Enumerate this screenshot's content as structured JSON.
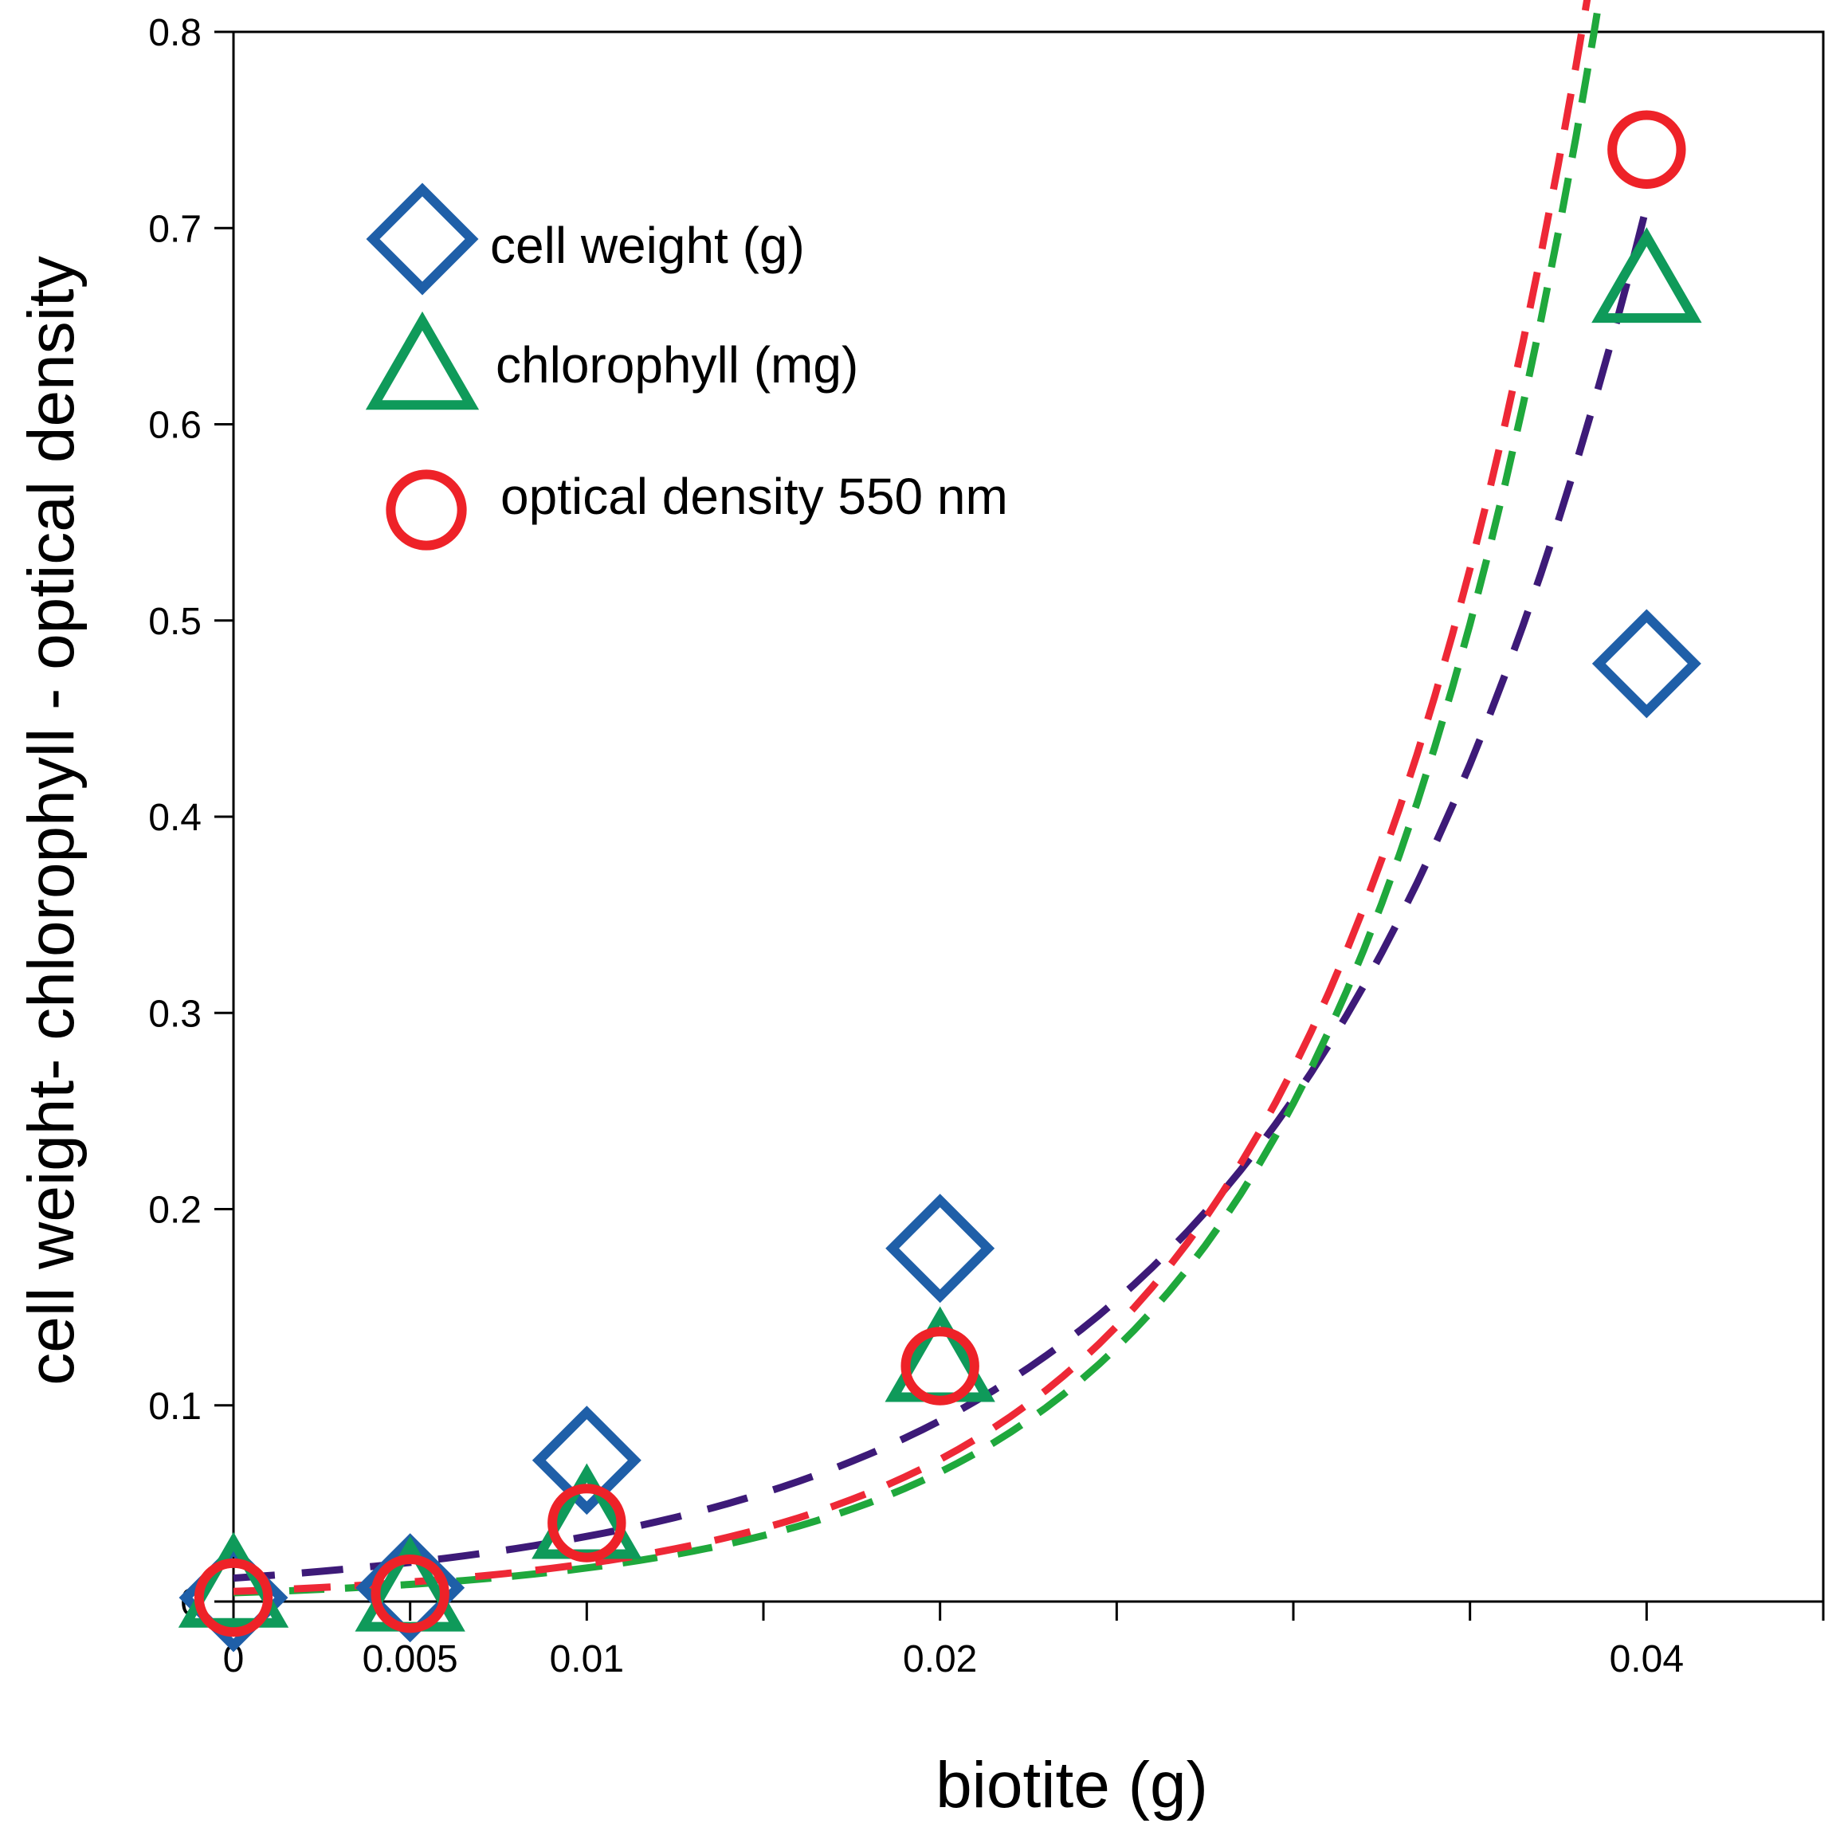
{
  "chart_data": {
    "type": "scatter",
    "title": "",
    "xlabel": "biotite (g)",
    "ylabel": "cell weight- chlorophyll - optical density",
    "xlim": [
      0,
      0.045
    ],
    "ylim": [
      0,
      0.8
    ],
    "x_ticks": [
      0,
      0.005,
      0.01,
      0.02,
      0.04
    ],
    "x_tick_labels": [
      "0",
      "0.005",
      "0.01",
      "0.02",
      "0.04"
    ],
    "x_minor_ticks": [
      0.015,
      0.025,
      0.03,
      0.035,
      0.045
    ],
    "y_ticks": [
      0,
      0.1,
      0.2,
      0.3,
      0.4,
      0.5,
      0.6,
      0.7,
      0.8
    ],
    "y_tick_labels": [
      "0",
      "0.1",
      "0.2",
      "0.3",
      "0.4",
      "0.5",
      "0.6",
      "0.7",
      "0.8"
    ],
    "grid": false,
    "legend_position": "top-left",
    "series": [
      {
        "name": "cell weight (g)",
        "marker": "diamond",
        "marker_color": "#1f5fa8",
        "line_color": "#3d1a78",
        "x": [
          0,
          0.005,
          0.01,
          0.02,
          0.04
        ],
        "y": [
          0.002,
          0.007,
          0.072,
          0.18,
          0.478
        ]
      },
      {
        "name": "chlorophyll (mg)",
        "marker": "triangle",
        "marker_color": "#0f9a5a",
        "line_color": "#1fa83c",
        "x": [
          0,
          0.005,
          0.01,
          0.02,
          0.04
        ],
        "y": [
          0.005,
          0.003,
          0.04,
          0.12,
          0.67
        ]
      },
      {
        "name": "optical density 550 nm",
        "marker": "circle",
        "marker_color": "#ee2228",
        "line_color": "#ee2836",
        "x": [
          0,
          0.005,
          0.01,
          0.02,
          0.04
        ],
        "y": [
          0.002,
          0.004,
          0.04,
          0.12,
          0.74
        ]
      }
    ]
  }
}
